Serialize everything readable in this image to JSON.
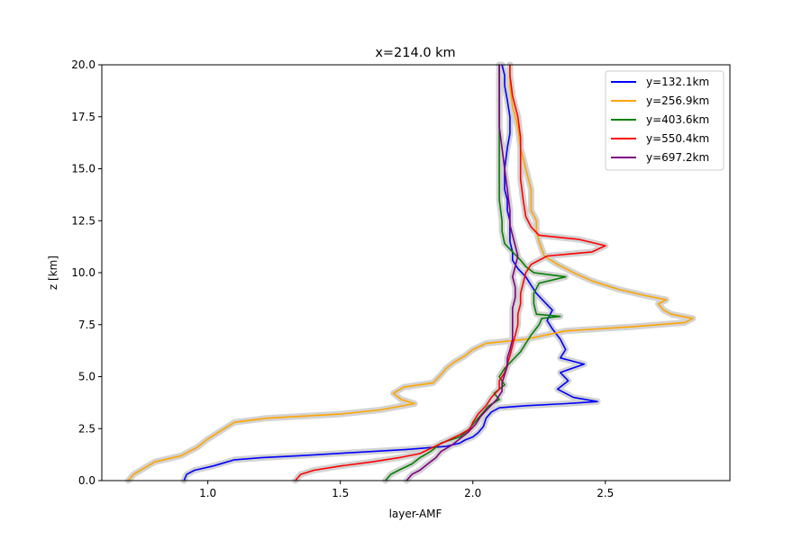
{
  "chart_data": {
    "type": "line",
    "title": "x=214.0 km",
    "xlabel": "layer-AMF",
    "ylabel": "z [km]",
    "xlim": [
      0.6,
      2.97
    ],
    "ylim": [
      0,
      20
    ],
    "xticks": [
      "1.0",
      "1.5",
      "2.0",
      "2.5"
    ],
    "xtick_values": [
      1.0,
      1.5,
      2.0,
      2.5
    ],
    "yticks": [
      "0.0",
      "2.5",
      "5.0",
      "7.5",
      "10.0",
      "12.5",
      "15.0",
      "17.5",
      "20.0"
    ],
    "ytick_values": [
      0,
      2.5,
      5,
      7.5,
      10,
      12.5,
      15,
      17.5,
      20
    ],
    "grid": false,
    "legend_position": "upper right",
    "uncertainty_band_color": "#d3d3d3",
    "series": [
      {
        "name": "y=132.1km",
        "color": "#0000ff",
        "points": [
          [
            0.91,
            0.0
          ],
          [
            0.92,
            0.3
          ],
          [
            0.95,
            0.5
          ],
          [
            1.02,
            0.7
          ],
          [
            1.1,
            1.0
          ],
          [
            1.2,
            1.1
          ],
          [
            1.35,
            1.2
          ],
          [
            1.55,
            1.35
          ],
          [
            1.75,
            1.5
          ],
          [
            1.9,
            1.65
          ],
          [
            1.95,
            1.8
          ],
          [
            1.97,
            1.95
          ],
          [
            2.0,
            2.1
          ],
          [
            2.02,
            2.3
          ],
          [
            2.04,
            2.6
          ],
          [
            2.05,
            3.0
          ],
          [
            2.07,
            3.3
          ],
          [
            2.1,
            3.5
          ],
          [
            2.2,
            3.6
          ],
          [
            2.35,
            3.7
          ],
          [
            2.47,
            3.8
          ],
          [
            2.38,
            4.0
          ],
          [
            2.32,
            4.4
          ],
          [
            2.36,
            4.8
          ],
          [
            2.33,
            5.2
          ],
          [
            2.42,
            5.6
          ],
          [
            2.33,
            5.9
          ],
          [
            2.35,
            6.3
          ],
          [
            2.33,
            6.8
          ],
          [
            2.3,
            7.3
          ],
          [
            2.28,
            7.7
          ],
          [
            2.3,
            8.2
          ],
          [
            2.27,
            8.6
          ],
          [
            2.24,
            9.0
          ],
          [
            2.22,
            9.4
          ],
          [
            2.2,
            9.8
          ],
          [
            2.17,
            10.2
          ],
          [
            2.15,
            10.6
          ],
          [
            2.15,
            11.0
          ],
          [
            2.14,
            11.5
          ],
          [
            2.14,
            12.0
          ],
          [
            2.14,
            12.5
          ],
          [
            2.13,
            13.0
          ],
          [
            2.13,
            13.5
          ],
          [
            2.12,
            14.0
          ],
          [
            2.12,
            15.0
          ],
          [
            2.13,
            16.0
          ],
          [
            2.14,
            16.7
          ],
          [
            2.14,
            17.5
          ],
          [
            2.13,
            18.3
          ],
          [
            2.12,
            19.0
          ],
          [
            2.12,
            19.5
          ],
          [
            2.11,
            20.0
          ]
        ]
      },
      {
        "name": "y=256.9km",
        "color": "#ffa500",
        "points": [
          [
            0.7,
            0.0
          ],
          [
            0.72,
            0.3
          ],
          [
            0.76,
            0.6
          ],
          [
            0.8,
            0.9
          ],
          [
            0.9,
            1.2
          ],
          [
            0.96,
            1.6
          ],
          [
            1.0,
            2.0
          ],
          [
            1.05,
            2.4
          ],
          [
            1.1,
            2.8
          ],
          [
            1.22,
            3.0
          ],
          [
            1.5,
            3.2
          ],
          [
            1.65,
            3.4
          ],
          [
            1.78,
            3.7
          ],
          [
            1.73,
            3.9
          ],
          [
            1.7,
            4.2
          ],
          [
            1.74,
            4.5
          ],
          [
            1.85,
            4.7
          ],
          [
            1.88,
            5.1
          ],
          [
            1.9,
            5.4
          ],
          [
            1.93,
            5.7
          ],
          [
            1.97,
            6.0
          ],
          [
            2.0,
            6.3
          ],
          [
            2.05,
            6.6
          ],
          [
            2.2,
            6.8
          ],
          [
            2.35,
            7.2
          ],
          [
            2.6,
            7.4
          ],
          [
            2.8,
            7.6
          ],
          [
            2.83,
            7.8
          ],
          [
            2.75,
            8.0
          ],
          [
            2.72,
            8.2
          ],
          [
            2.7,
            8.5
          ],
          [
            2.73,
            8.7
          ],
          [
            2.65,
            8.9
          ],
          [
            2.55,
            9.2
          ],
          [
            2.45,
            9.6
          ],
          [
            2.38,
            10.0
          ],
          [
            2.32,
            10.4
          ],
          [
            2.27,
            10.8
          ],
          [
            2.25,
            11.5
          ],
          [
            2.24,
            12.0
          ],
          [
            2.24,
            12.5
          ],
          [
            2.22,
            13.0
          ],
          [
            2.22,
            14.0
          ],
          [
            2.2,
            15.0
          ],
          [
            2.18,
            16.0
          ],
          [
            2.17,
            17.0
          ],
          [
            2.15,
            18.0
          ],
          [
            2.14,
            19.0
          ],
          [
            2.14,
            20.0
          ]
        ]
      },
      {
        "name": "y=403.6km",
        "color": "#008000",
        "points": [
          [
            1.67,
            0.0
          ],
          [
            1.69,
            0.3
          ],
          [
            1.72,
            0.5
          ],
          [
            1.77,
            0.8
          ],
          [
            1.8,
            1.1
          ],
          [
            1.84,
            1.4
          ],
          [
            1.88,
            1.8
          ],
          [
            1.95,
            2.1
          ],
          [
            1.98,
            2.4
          ],
          [
            2.0,
            2.7
          ],
          [
            2.02,
            3.0
          ],
          [
            2.04,
            3.3
          ],
          [
            2.06,
            3.6
          ],
          [
            2.1,
            3.9
          ],
          [
            2.08,
            4.2
          ],
          [
            2.12,
            4.6
          ],
          [
            2.1,
            5.0
          ],
          [
            2.12,
            5.4
          ],
          [
            2.15,
            5.8
          ],
          [
            2.18,
            6.2
          ],
          [
            2.2,
            6.6
          ],
          [
            2.22,
            7.0
          ],
          [
            2.25,
            7.5
          ],
          [
            2.26,
            7.8
          ],
          [
            2.33,
            7.9
          ],
          [
            2.24,
            8.0
          ],
          [
            2.23,
            8.5
          ],
          [
            2.23,
            9.0
          ],
          [
            2.25,
            9.5
          ],
          [
            2.35,
            9.8
          ],
          [
            2.23,
            10.0
          ],
          [
            2.2,
            10.3
          ],
          [
            2.18,
            10.6
          ],
          [
            2.15,
            11.0
          ],
          [
            2.12,
            11.4
          ],
          [
            2.11,
            12.0
          ],
          [
            2.11,
            12.5
          ],
          [
            2.1,
            13.5
          ],
          [
            2.1,
            14.5
          ],
          [
            2.1,
            15.5
          ],
          [
            2.1,
            16.5
          ],
          [
            2.1,
            17.5
          ],
          [
            2.1,
            18.5
          ],
          [
            2.1,
            19.5
          ],
          [
            2.1,
            20.0
          ]
        ]
      },
      {
        "name": "y=550.4km",
        "color": "#ff0000",
        "points": [
          [
            1.33,
            0.0
          ],
          [
            1.35,
            0.3
          ],
          [
            1.4,
            0.5
          ],
          [
            1.5,
            0.7
          ],
          [
            1.62,
            0.9
          ],
          [
            1.72,
            1.1
          ],
          [
            1.8,
            1.3
          ],
          [
            1.85,
            1.6
          ],
          [
            1.9,
            1.9
          ],
          [
            1.95,
            2.2
          ],
          [
            1.99,
            2.5
          ],
          [
            2.0,
            2.8
          ],
          [
            2.02,
            3.2
          ],
          [
            2.05,
            3.6
          ],
          [
            2.07,
            4.0
          ],
          [
            2.1,
            4.4
          ],
          [
            2.1,
            4.8
          ],
          [
            2.12,
            5.2
          ],
          [
            2.13,
            5.6
          ],
          [
            2.14,
            6.0
          ],
          [
            2.15,
            6.5
          ],
          [
            2.16,
            7.0
          ],
          [
            2.17,
            7.5
          ],
          [
            2.17,
            8.0
          ],
          [
            2.18,
            8.5
          ],
          [
            2.18,
            9.0
          ],
          [
            2.19,
            9.5
          ],
          [
            2.2,
            10.0
          ],
          [
            2.22,
            10.4
          ],
          [
            2.28,
            10.8
          ],
          [
            2.45,
            11.0
          ],
          [
            2.5,
            11.3
          ],
          [
            2.4,
            11.6
          ],
          [
            2.25,
            11.8
          ],
          [
            2.22,
            12.2
          ],
          [
            2.2,
            12.7
          ],
          [
            2.19,
            13.5
          ],
          [
            2.18,
            14.5
          ],
          [
            2.18,
            15.5
          ],
          [
            2.18,
            16.5
          ],
          [
            2.17,
            17.5
          ],
          [
            2.15,
            18.5
          ],
          [
            2.14,
            19.5
          ],
          [
            2.14,
            20.0
          ]
        ]
      },
      {
        "name": "y=697.2km",
        "color": "#800080",
        "points": [
          [
            1.75,
            0.0
          ],
          [
            1.77,
            0.3
          ],
          [
            1.8,
            0.5
          ],
          [
            1.83,
            0.8
          ],
          [
            1.86,
            1.1
          ],
          [
            1.88,
            1.4
          ],
          [
            1.92,
            1.7
          ],
          [
            1.95,
            2.0
          ],
          [
            1.98,
            2.3
          ],
          [
            2.01,
            2.7
          ],
          [
            2.03,
            3.1
          ],
          [
            2.06,
            3.5
          ],
          [
            2.09,
            3.9
          ],
          [
            2.11,
            4.3
          ],
          [
            2.11,
            4.7
          ],
          [
            2.12,
            5.1
          ],
          [
            2.13,
            5.5
          ],
          [
            2.13,
            5.9
          ],
          [
            2.14,
            6.3
          ],
          [
            2.15,
            6.8
          ],
          [
            2.15,
            7.3
          ],
          [
            2.15,
            7.8
          ],
          [
            2.15,
            8.3
          ],
          [
            2.16,
            8.8
          ],
          [
            2.16,
            9.3
          ],
          [
            2.15,
            9.8
          ],
          [
            2.16,
            10.3
          ],
          [
            2.17,
            10.8
          ],
          [
            2.16,
            11.3
          ],
          [
            2.15,
            11.8
          ],
          [
            2.14,
            12.3
          ],
          [
            2.14,
            13.0
          ],
          [
            2.13,
            14.0
          ],
          [
            2.12,
            15.0
          ],
          [
            2.11,
            16.0
          ],
          [
            2.1,
            17.0
          ],
          [
            2.1,
            18.0
          ],
          [
            2.1,
            19.0
          ],
          [
            2.1,
            20.0
          ]
        ]
      }
    ]
  }
}
